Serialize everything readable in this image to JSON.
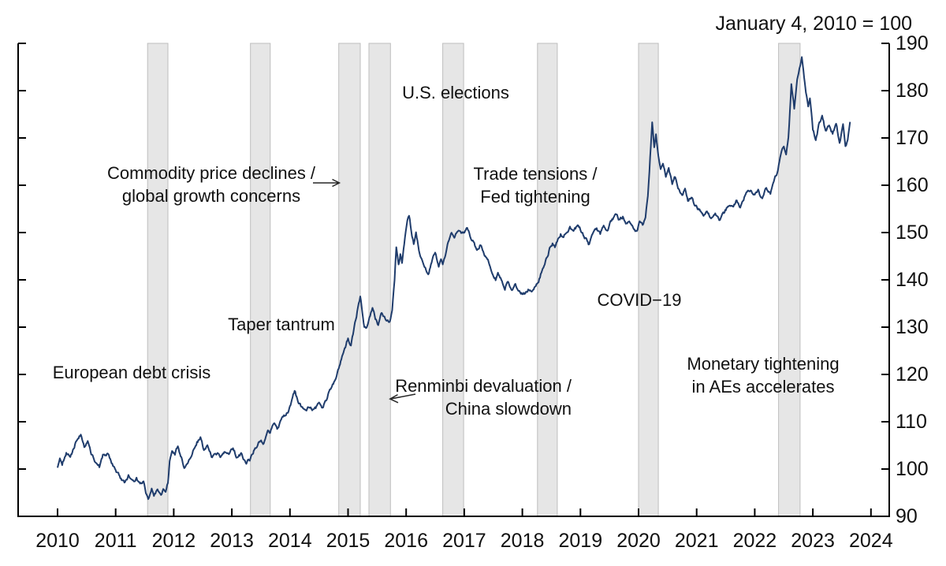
{
  "chart_data": {
    "type": "line",
    "title": "January 4, 2010 = 100",
    "x_axis": {
      "ticks": [
        2010,
        2011,
        2012,
        2013,
        2014,
        2015,
        2016,
        2017,
        2018,
        2019,
        2020,
        2021,
        2022,
        2023,
        2024
      ]
    },
    "y_axis": {
      "ticks": [
        90,
        100,
        110,
        120,
        130,
        140,
        150,
        160,
        170,
        180,
        190
      ],
      "range": [
        90,
        190
      ],
      "side": "right"
    },
    "band_color": "#e6e6e6",
    "series": {
      "color": "#1f3c6c",
      "points": [
        [
          2010.0,
          100.0
        ],
        [
          2010.04,
          102.3
        ],
        [
          2010.08,
          101.2
        ],
        [
          2010.15,
          103.6
        ],
        [
          2010.22,
          102.2
        ],
        [
          2010.3,
          105.2
        ],
        [
          2010.4,
          107.2
        ],
        [
          2010.46,
          104.6
        ],
        [
          2010.52,
          105.8
        ],
        [
          2010.58,
          103.2
        ],
        [
          2010.65,
          101.6
        ],
        [
          2010.72,
          100.4
        ],
        [
          2010.78,
          102.8
        ],
        [
          2010.86,
          103.2
        ],
        [
          2010.93,
          101.2
        ],
        [
          2011.0,
          99.6
        ],
        [
          2011.08,
          98.0
        ],
        [
          2011.15,
          97.0
        ],
        [
          2011.22,
          98.4
        ],
        [
          2011.3,
          97.0
        ],
        [
          2011.36,
          98.2
        ],
        [
          2011.42,
          96.6
        ],
        [
          2011.48,
          97.6
        ],
        [
          2011.52,
          95.2
        ],
        [
          2011.56,
          93.8
        ],
        [
          2011.62,
          95.6
        ],
        [
          2011.66,
          94.2
        ],
        [
          2011.72,
          95.8
        ],
        [
          2011.78,
          94.6
        ],
        [
          2011.82,
          96.0
        ],
        [
          2011.86,
          95.0
        ],
        [
          2011.9,
          97.2
        ],
        [
          2011.93,
          101.6
        ],
        [
          2011.97,
          104.2
        ],
        [
          2012.02,
          103.4
        ],
        [
          2012.07,
          105.0
        ],
        [
          2012.12,
          102.8
        ],
        [
          2012.18,
          100.6
        ],
        [
          2012.25,
          101.6
        ],
        [
          2012.32,
          103.2
        ],
        [
          2012.4,
          105.6
        ],
        [
          2012.46,
          106.4
        ],
        [
          2012.52,
          104.0
        ],
        [
          2012.58,
          105.0
        ],
        [
          2012.65,
          102.6
        ],
        [
          2012.72,
          103.6
        ],
        [
          2012.8,
          103.0
        ],
        [
          2012.88,
          104.0
        ],
        [
          2012.95,
          103.0
        ],
        [
          2013.02,
          104.2
        ],
        [
          2013.1,
          102.2
        ],
        [
          2013.16,
          103.2
        ],
        [
          2013.25,
          101.2
        ],
        [
          2013.32,
          102.2
        ],
        [
          2013.4,
          104.6
        ],
        [
          2013.48,
          106.0
        ],
        [
          2013.55,
          105.2
        ],
        [
          2013.62,
          107.6
        ],
        [
          2013.66,
          107.0
        ],
        [
          2013.72,
          109.6
        ],
        [
          2013.78,
          108.6
        ],
        [
          2013.85,
          110.6
        ],
        [
          2013.92,
          111.2
        ],
        [
          2014.0,
          113.0
        ],
        [
          2014.08,
          116.2
        ],
        [
          2014.15,
          114.0
        ],
        [
          2014.25,
          112.0
        ],
        [
          2014.32,
          113.2
        ],
        [
          2014.42,
          112.6
        ],
        [
          2014.5,
          113.6
        ],
        [
          2014.56,
          112.8
        ],
        [
          2014.62,
          114.6
        ],
        [
          2014.7,
          117.0
        ],
        [
          2014.78,
          119.2
        ],
        [
          2014.84,
          121.2
        ],
        [
          2014.92,
          124.6
        ],
        [
          2015.0,
          127.6
        ],
        [
          2015.05,
          126.2
        ],
        [
          2015.12,
          130.6
        ],
        [
          2015.17,
          134.0
        ],
        [
          2015.21,
          136.2
        ],
        [
          2015.28,
          130.2
        ],
        [
          2015.32,
          129.8
        ],
        [
          2015.38,
          132.2
        ],
        [
          2015.42,
          133.8
        ],
        [
          2015.47,
          131.8
        ],
        [
          2015.52,
          130.4
        ],
        [
          2015.58,
          133.0
        ],
        [
          2015.65,
          131.6
        ],
        [
          2015.72,
          131.2
        ],
        [
          2015.76,
          133.6
        ],
        [
          2015.8,
          140.0
        ],
        [
          2015.83,
          147.0
        ],
        [
          2015.87,
          143.2
        ],
        [
          2015.9,
          145.6
        ],
        [
          2015.93,
          143.6
        ],
        [
          2015.98,
          149.2
        ],
        [
          2016.02,
          152.6
        ],
        [
          2016.05,
          153.8
        ],
        [
          2016.1,
          149.6
        ],
        [
          2016.13,
          147.6
        ],
        [
          2016.17,
          150.0
        ],
        [
          2016.22,
          146.2
        ],
        [
          2016.28,
          143.6
        ],
        [
          2016.38,
          141.4
        ],
        [
          2016.45,
          144.2
        ],
        [
          2016.5,
          146.2
        ],
        [
          2016.56,
          143.0
        ],
        [
          2016.6,
          144.0
        ],
        [
          2016.63,
          142.8
        ],
        [
          2016.7,
          146.6
        ],
        [
          2016.77,
          150.4
        ],
        [
          2016.83,
          149.2
        ],
        [
          2016.9,
          150.6
        ],
        [
          2016.98,
          150.0
        ],
        [
          2017.05,
          150.8
        ],
        [
          2017.1,
          149.2
        ],
        [
          2017.16,
          148.2
        ],
        [
          2017.22,
          146.2
        ],
        [
          2017.28,
          147.6
        ],
        [
          2017.35,
          145.2
        ],
        [
          2017.42,
          143.6
        ],
        [
          2017.48,
          141.6
        ],
        [
          2017.54,
          140.2
        ],
        [
          2017.58,
          141.8
        ],
        [
          2017.65,
          139.6
        ],
        [
          2017.7,
          138.2
        ],
        [
          2017.75,
          139.8
        ],
        [
          2017.82,
          137.8
        ],
        [
          2017.88,
          138.8
        ],
        [
          2017.95,
          137.4
        ],
        [
          2018.05,
          137.0
        ],
        [
          2018.1,
          138.0
        ],
        [
          2018.16,
          137.4
        ],
        [
          2018.22,
          138.6
        ],
        [
          2018.28,
          140.0
        ],
        [
          2018.34,
          142.0
        ],
        [
          2018.42,
          144.6
        ],
        [
          2018.47,
          146.6
        ],
        [
          2018.52,
          147.6
        ],
        [
          2018.56,
          146.8
        ],
        [
          2018.6,
          148.2
        ],
        [
          2018.66,
          149.6
        ],
        [
          2018.71,
          148.6
        ],
        [
          2018.76,
          150.0
        ],
        [
          2018.82,
          151.0
        ],
        [
          2018.88,
          149.6
        ],
        [
          2018.95,
          151.6
        ],
        [
          2019.0,
          150.6
        ],
        [
          2019.06,
          149.2
        ],
        [
          2019.15,
          147.4
        ],
        [
          2019.22,
          149.6
        ],
        [
          2019.28,
          150.6
        ],
        [
          2019.34,
          149.4
        ],
        [
          2019.4,
          151.2
        ],
        [
          2019.46,
          150.2
        ],
        [
          2019.52,
          152.2
        ],
        [
          2019.58,
          153.0
        ],
        [
          2019.63,
          154.0
        ],
        [
          2019.68,
          152.6
        ],
        [
          2019.73,
          153.4
        ],
        [
          2019.78,
          151.8
        ],
        [
          2019.84,
          152.8
        ],
        [
          2019.89,
          151.6
        ],
        [
          2019.93,
          150.8
        ],
        [
          2019.97,
          150.4
        ],
        [
          2020.02,
          152.2
        ],
        [
          2020.07,
          151.2
        ],
        [
          2020.12,
          153.6
        ],
        [
          2020.16,
          158.0
        ],
        [
          2020.2,
          166.0
        ],
        [
          2020.235,
          173.2
        ],
        [
          2020.27,
          167.6
        ],
        [
          2020.3,
          170.2
        ],
        [
          2020.34,
          166.0
        ],
        [
          2020.38,
          163.6
        ],
        [
          2020.42,
          165.0
        ],
        [
          2020.47,
          162.2
        ],
        [
          2020.52,
          163.2
        ],
        [
          2020.58,
          160.6
        ],
        [
          2020.63,
          161.8
        ],
        [
          2020.68,
          159.6
        ],
        [
          2020.75,
          158.2
        ],
        [
          2020.8,
          159.2
        ],
        [
          2020.85,
          156.6
        ],
        [
          2020.92,
          157.6
        ],
        [
          2020.97,
          155.6
        ],
        [
          2021.05,
          154.6
        ],
        [
          2021.12,
          153.6
        ],
        [
          2021.18,
          154.6
        ],
        [
          2021.25,
          152.8
        ],
        [
          2021.32,
          153.8
        ],
        [
          2021.4,
          152.4
        ],
        [
          2021.48,
          154.2
        ],
        [
          2021.55,
          155.8
        ],
        [
          2021.62,
          155.2
        ],
        [
          2021.68,
          156.6
        ],
        [
          2021.75,
          155.6
        ],
        [
          2021.82,
          157.6
        ],
        [
          2021.88,
          158.6
        ],
        [
          2021.93,
          159.2
        ],
        [
          2022.0,
          157.8
        ],
        [
          2022.06,
          158.6
        ],
        [
          2022.13,
          156.8
        ],
        [
          2022.2,
          159.2
        ],
        [
          2022.27,
          158.2
        ],
        [
          2022.34,
          161.4
        ],
        [
          2022.4,
          163.2
        ],
        [
          2022.45,
          166.6
        ],
        [
          2022.5,
          168.2
        ],
        [
          2022.54,
          166.8
        ],
        [
          2022.58,
          170.6
        ],
        [
          2022.63,
          181.6
        ],
        [
          2022.68,
          176.4
        ],
        [
          2022.73,
          182.0
        ],
        [
          2022.78,
          185.2
        ],
        [
          2022.81,
          186.8
        ],
        [
          2022.85,
          182.6
        ],
        [
          2022.88,
          179.6
        ],
        [
          2022.92,
          176.6
        ],
        [
          2022.95,
          178.2
        ],
        [
          2023.0,
          171.6
        ],
        [
          2023.05,
          169.6
        ],
        [
          2023.1,
          172.6
        ],
        [
          2023.16,
          174.6
        ],
        [
          2023.22,
          171.6
        ],
        [
          2023.28,
          172.8
        ],
        [
          2023.34,
          171.0
        ],
        [
          2023.4,
          172.6
        ],
        [
          2023.46,
          169.2
        ],
        [
          2023.52,
          172.8
        ],
        [
          2023.56,
          167.6
        ],
        [
          2023.6,
          169.6
        ],
        [
          2023.64,
          173.4
        ]
      ]
    },
    "event_bands": [
      {
        "id": "european-debt-crisis",
        "start_year": 2011.55,
        "end_year": 2011.9
      },
      {
        "id": "taper-tantrum",
        "start_year": 2013.32,
        "end_year": 2013.66
      },
      {
        "id": "commodity-price-declines",
        "start_year": 2014.84,
        "end_year": 2015.21
      },
      {
        "id": "renminbi-devaluation",
        "start_year": 2015.36,
        "end_year": 2015.73
      },
      {
        "id": "us-elections",
        "start_year": 2016.63,
        "end_year": 2016.99
      },
      {
        "id": "trade-tensions",
        "start_year": 2018.26,
        "end_year": 2018.6
      },
      {
        "id": "covid-19",
        "start_year": 2020.0,
        "end_year": 2020.34
      },
      {
        "id": "monetary-tightening",
        "start_year": 2022.41,
        "end_year": 2022.78
      }
    ],
    "annotations": [
      {
        "id": "european-debt-crisis",
        "lines": [
          "European debt crisis"
        ],
        "arrow": null
      },
      {
        "id": "commodity-price-declines",
        "lines": [
          "Commodity price declines /",
          "global growth concerns"
        ],
        "arrow": "right"
      },
      {
        "id": "taper-tantrum",
        "lines": [
          "Taper tantrum"
        ],
        "arrow": null
      },
      {
        "id": "us-elections",
        "lines": [
          "U.S. elections"
        ],
        "arrow": null
      },
      {
        "id": "renminbi-devaluation",
        "lines": [
          "Renminbi devaluation /",
          "China slowdown"
        ],
        "arrow": "left"
      },
      {
        "id": "trade-tensions",
        "lines": [
          "Trade tensions /",
          "Fed tightening"
        ],
        "arrow": null
      },
      {
        "id": "covid-19",
        "lines": [
          "COVID−19"
        ],
        "arrow": null
      },
      {
        "id": "monetary-tightening",
        "lines": [
          "Monetary tightening",
          "in AEs accelerates"
        ],
        "arrow": null
      }
    ]
  }
}
